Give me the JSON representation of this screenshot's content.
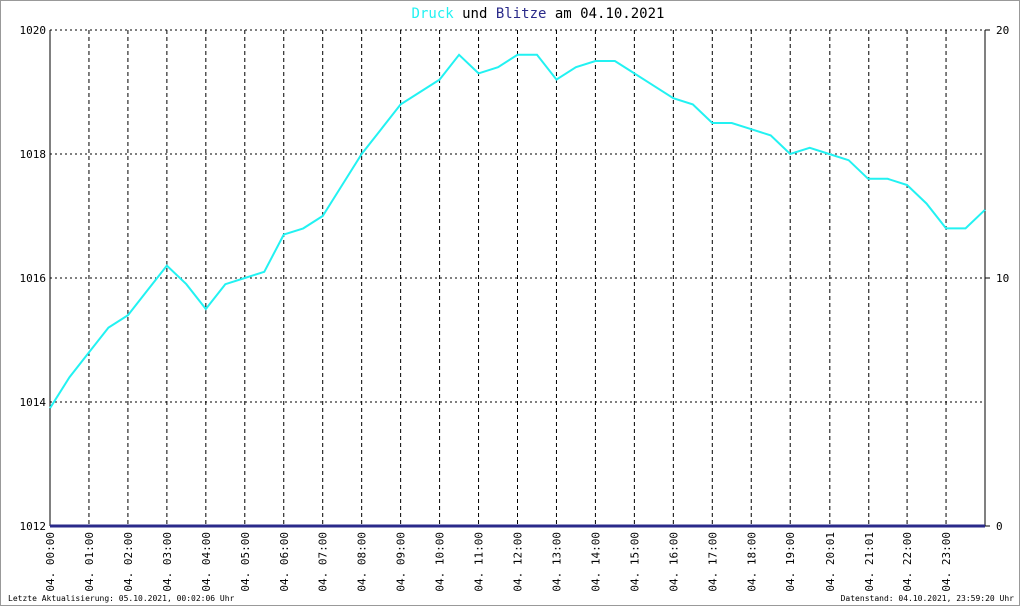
{
  "chart_data": {
    "type": "line",
    "title_connector": "und",
    "title_suffix": "am 04.10.2021",
    "footer_left": "Letzte Aktualisierung: 05.10.2021, 00:02:06 Uhr",
    "footer_right": "Datenstand: 04.10.2021, 23:59:20 Uhr",
    "x": [
      0,
      0.5,
      1,
      1.5,
      2,
      2.5,
      3,
      3.5,
      4,
      4.5,
      5,
      5.5,
      6,
      6.5,
      7,
      7.5,
      8,
      8.5,
      9,
      9.5,
      10,
      10.5,
      11,
      11.5,
      12,
      12.5,
      13,
      13.5,
      14,
      14.5,
      15,
      15.5,
      16,
      16.5,
      17,
      17.5,
      18,
      18.5,
      19,
      19.5,
      20,
      20.5,
      21,
      21.5,
      22,
      22.5,
      23,
      23.5,
      24
    ],
    "xlim": [
      0,
      24
    ],
    "xticks": [
      {
        "value": 0,
        "label": "04. 00:00"
      },
      {
        "value": 1,
        "label": "04. 01:00"
      },
      {
        "value": 2,
        "label": "04. 02:00"
      },
      {
        "value": 3,
        "label": "04. 03:00"
      },
      {
        "value": 4,
        "label": "04. 04:00"
      },
      {
        "value": 5,
        "label": "04. 05:00"
      },
      {
        "value": 6,
        "label": "04. 06:00"
      },
      {
        "value": 7,
        "label": "04. 07:00"
      },
      {
        "value": 8,
        "label": "04. 08:00"
      },
      {
        "value": 9,
        "label": "04. 09:00"
      },
      {
        "value": 10,
        "label": "04. 10:00"
      },
      {
        "value": 11,
        "label": "04. 11:00"
      },
      {
        "value": 12,
        "label": "04. 12:00"
      },
      {
        "value": 13,
        "label": "04. 13:00"
      },
      {
        "value": 14,
        "label": "04. 14:00"
      },
      {
        "value": 15,
        "label": "04. 15:00"
      },
      {
        "value": 16,
        "label": "04. 16:00"
      },
      {
        "value": 17,
        "label": "04. 17:00"
      },
      {
        "value": 18,
        "label": "04. 18:00"
      },
      {
        "value": 19,
        "label": "04. 19:00"
      },
      {
        "value": 20.0167,
        "label": "04. 20:01"
      },
      {
        "value": 21.0167,
        "label": "04. 21:01"
      },
      {
        "value": 22,
        "label": "04. 22:00"
      },
      {
        "value": 23,
        "label": "04. 23:00"
      }
    ],
    "ylim": [
      1012,
      1020
    ],
    "yticks": [
      1012,
      1014,
      1016,
      1018,
      1020
    ],
    "y2lim": [
      0,
      20
    ],
    "y2ticks": [
      0,
      10,
      20
    ],
    "grid": true,
    "series": [
      {
        "name": "Druck",
        "color": "#22f2f2",
        "values": [
          1013.9,
          1014.4,
          1014.8,
          1015.2,
          1015.4,
          1015.8,
          1016.2,
          1015.9,
          1015.5,
          1015.9,
          1016.0,
          1016.1,
          1016.7,
          1016.8,
          1017.0,
          1017.5,
          1018.0,
          1018.4,
          1018.8,
          1019.0,
          1019.2,
          1019.6,
          1019.3,
          1019.4,
          1019.6,
          1019.6,
          1019.2,
          1019.4,
          1019.5,
          1019.5,
          1019.3,
          1019.1,
          1018.9,
          1018.8,
          1018.5,
          1018.5,
          1018.4,
          1018.3,
          1018.0,
          1018.1,
          1018.0,
          1017.9,
          1017.6,
          1017.6,
          1017.5,
          1017.2,
          1016.8,
          1016.8,
          1017.1
        ]
      },
      {
        "name": "Blitze",
        "color": "#2a2a8a",
        "axis": "y2",
        "values": [
          0,
          0,
          0,
          0,
          0,
          0,
          0,
          0,
          0,
          0,
          0,
          0,
          0,
          0,
          0,
          0,
          0,
          0,
          0,
          0,
          0,
          0,
          0,
          0,
          0,
          0,
          0,
          0,
          0,
          0,
          0,
          0,
          0,
          0,
          0,
          0,
          0,
          0,
          0,
          0,
          0,
          0,
          0,
          0,
          0,
          0,
          0,
          0,
          0
        ]
      }
    ]
  }
}
